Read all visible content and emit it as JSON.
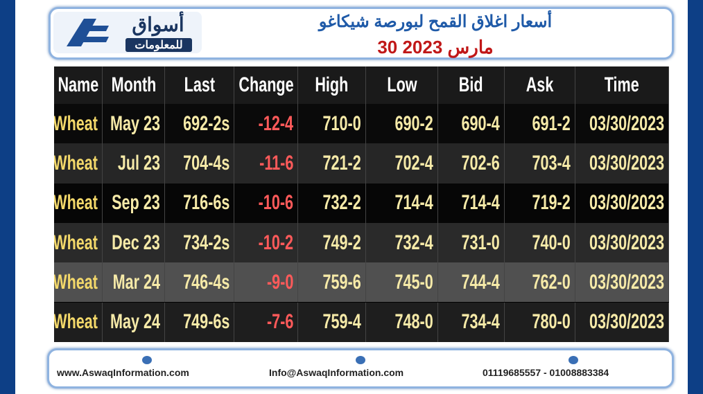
{
  "header": {
    "logo": {
      "name": "أسواق",
      "tagline": "للمعلومات"
    },
    "title": "أسعار اغلاق القمح لبورصة شيكاغو",
    "date": "30 مارس 2023"
  },
  "table": {
    "columns": [
      "Name",
      "Month",
      "Last",
      "Change",
      "High",
      "Low",
      "Bid",
      "Ask",
      "Time"
    ],
    "rows": [
      [
        "Wheat",
        "May 23",
        "692-2s",
        "-12-4",
        "710-0",
        "690-2",
        "690-4",
        "691-2",
        "03/30/2023"
      ],
      [
        "Wheat",
        "Jul 23",
        "704-4s",
        "-11-6",
        "721-2",
        "702-4",
        "702-6",
        "703-4",
        "03/30/2023"
      ],
      [
        "Wheat",
        "Sep 23",
        "716-6s",
        "-10-6",
        "732-2",
        "714-4",
        "714-4",
        "719-2",
        "03/30/2023"
      ],
      [
        "Wheat",
        "Dec 23",
        "734-2s",
        "-10-2",
        "749-2",
        "732-4",
        "731-0",
        "740-0",
        "03/30/2023"
      ],
      [
        "Wheat",
        "Mar 24",
        "746-4s",
        "-9-0",
        "759-6",
        "745-0",
        "744-4",
        "762-0",
        "03/30/2023"
      ],
      [
        "Wheat",
        "May 24",
        "749-6s",
        "-7-6",
        "759-4",
        "748-0",
        "734-4",
        "780-0",
        "03/30/2023"
      ]
    ]
  },
  "footer": {
    "website": "www.AswaqInformation.com",
    "email": "Info@AswaqInformation.com",
    "phones": "01119685557 - 01008883384"
  }
}
